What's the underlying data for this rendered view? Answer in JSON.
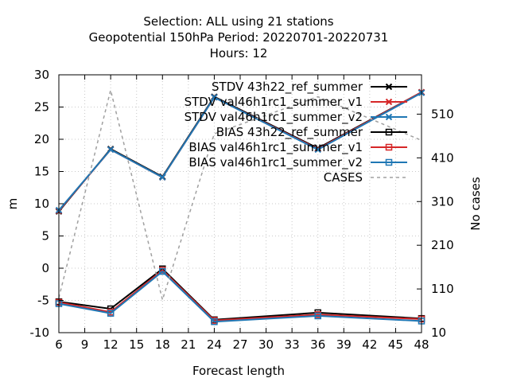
{
  "chart_data": {
    "type": "line",
    "title_lines": [
      "Selection: ALL using    21 stations",
      "Geopotential 150hPa   Period: 20220701-20220731",
      "Hours:  12"
    ],
    "xlabel": "Forecast length",
    "ylabel": "m",
    "y2label": "No cases",
    "xlim": [
      6,
      48
    ],
    "ylim": [
      -10,
      30
    ],
    "y2lim": [
      10,
      600
    ],
    "x_ticks": [
      6,
      9,
      12,
      15,
      18,
      21,
      24,
      27,
      30,
      33,
      36,
      39,
      42,
      45,
      48
    ],
    "y_ticks": [
      -10,
      -5,
      0,
      5,
      10,
      15,
      20,
      25,
      30
    ],
    "y2_ticks": [
      10,
      110,
      210,
      310,
      410,
      510
    ],
    "grid": true,
    "legend_position": "top-right",
    "x": [
      6,
      12,
      18,
      24,
      36,
      48
    ],
    "series": [
      {
        "name": "STDV 43h22_ref_summer",
        "axis": "y",
        "color": "#000000",
        "marker": "x",
        "dash": "",
        "values": [
          8.8,
          18.5,
          14.2,
          26.6,
          18.6,
          27.3
        ]
      },
      {
        "name": "STDV val46h1rc1_summer_v1",
        "axis": "y",
        "color": "#d62728",
        "marker": "x",
        "dash": "",
        "values": [
          8.9,
          18.4,
          14.1,
          26.5,
          18.5,
          27.3
        ]
      },
      {
        "name": "STDV val46h1rc1_summer_v2",
        "axis": "y",
        "color": "#1f77b4",
        "marker": "x",
        "dash": "",
        "values": [
          9.0,
          18.4,
          14.1,
          26.5,
          18.4,
          27.2
        ]
      },
      {
        "name": "BIAS 43h22_ref_summer",
        "axis": "y",
        "color": "#000000",
        "marker": "square",
        "dash": "",
        "values": [
          -5.2,
          -6.3,
          -0.1,
          -8.0,
          -6.9,
          -7.8
        ]
      },
      {
        "name": "BIAS val46h1rc1_summer_v1",
        "axis": "y",
        "color": "#d62728",
        "marker": "square",
        "dash": "",
        "values": [
          -5.3,
          -6.8,
          -0.3,
          -8.1,
          -7.2,
          -7.9
        ]
      },
      {
        "name": "BIAS val46h1rc1_summer_v2",
        "axis": "y",
        "color": "#1f77b4",
        "marker": "square",
        "dash": "",
        "values": [
          -5.5,
          -7.0,
          -0.5,
          -8.3,
          -7.4,
          -8.2
        ]
      },
      {
        "name": "CASES",
        "axis": "y2",
        "color": "#a0a0a0",
        "marker": "none",
        "dash": "4,4",
        "values": [
          90,
          565,
          85,
          465,
          550,
          450
        ]
      }
    ]
  }
}
